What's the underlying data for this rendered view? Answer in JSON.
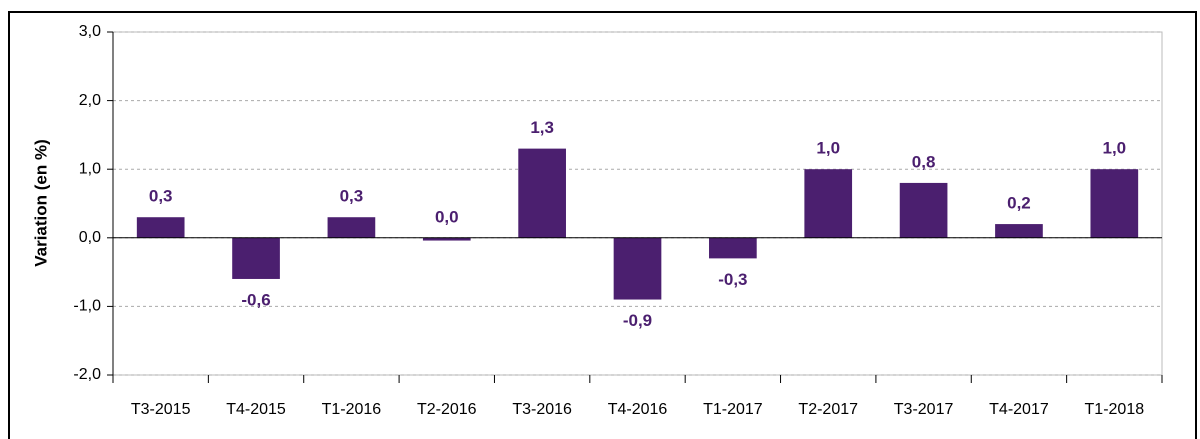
{
  "chart_data": {
    "type": "bar",
    "y_label": "Variation (en %)",
    "categories": [
      "T3-2015",
      "T4-2015",
      "T1-2016",
      "T2-2016",
      "T3-2016",
      "T4-2016",
      "T1-2017",
      "T2-2017",
      "T3-2017",
      "T4-2017",
      "T1-2018"
    ],
    "values": [
      0.3,
      -0.6,
      0.3,
      -0.04,
      1.3,
      -0.9,
      -0.3,
      1.0,
      0.8,
      0.2,
      1.0
    ],
    "value_labels": [
      "0,3",
      "-0,6",
      "0,3",
      "0,0",
      "1,3",
      "-0,9",
      "-0,3",
      "1,0",
      "0,8",
      "0,2",
      "1,0"
    ],
    "color": "#4b1f6f",
    "ylim": [
      -2,
      3
    ],
    "yticks": [
      {
        "value": -2,
        "label": "-2,0"
      },
      {
        "value": -1,
        "label": "-1,0"
      },
      {
        "value": 0,
        "label": "0,0"
      },
      {
        "value": 1,
        "label": "1,0"
      },
      {
        "value": 2,
        "label": "2,0"
      },
      {
        "value": 3,
        "label": "3,0"
      }
    ],
    "grid": true
  }
}
